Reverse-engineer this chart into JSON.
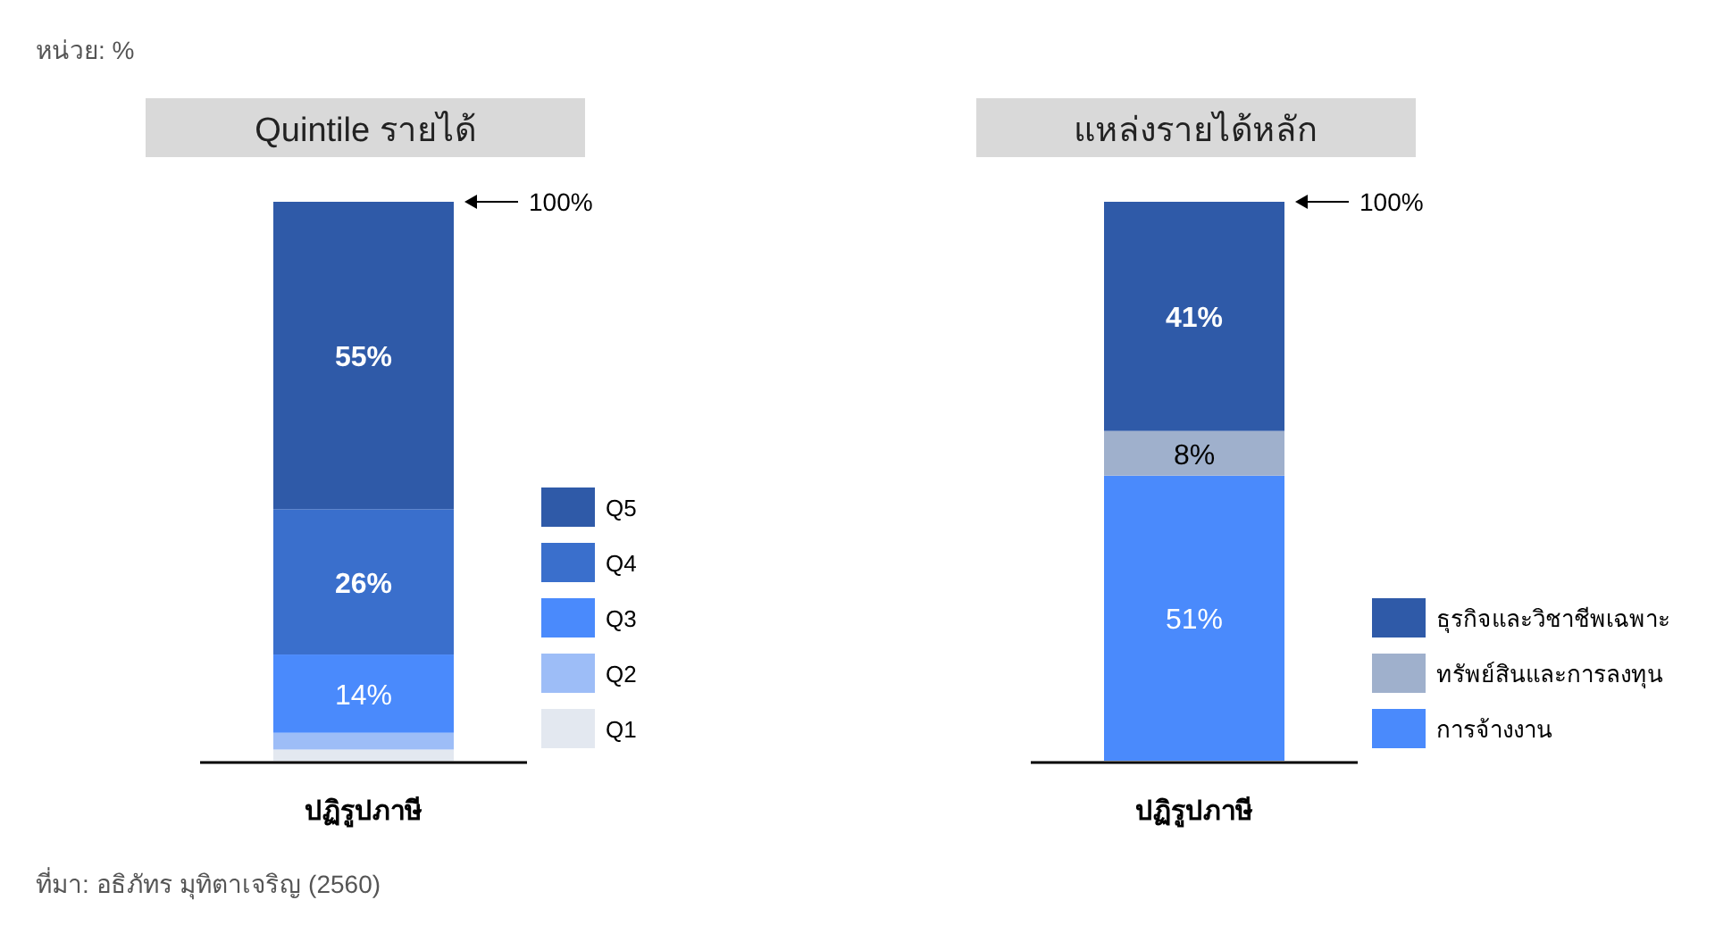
{
  "chart_data": [
    {
      "type": "bar",
      "stacked": true,
      "title": "Quintile รายได้",
      "categories": [
        "ปฏิรูปภาษี"
      ],
      "legend": "right",
      "series": [
        {
          "name": "Q1",
          "color": "#e3e8f0",
          "values": [
            2
          ]
        },
        {
          "name": "Q2",
          "color": "#9dbdf7",
          "values": [
            3
          ]
        },
        {
          "name": "Q3",
          "color": "#4a8afc",
          "values": [
            14
          ],
          "value_labels": [
            "14%"
          ]
        },
        {
          "name": "Q4",
          "color": "#3a6fcc",
          "values": [
            26
          ],
          "value_labels": [
            "26%"
          ]
        },
        {
          "name": "Q5",
          "color": "#2f5aa8",
          "values": [
            55
          ],
          "value_labels": [
            "55%"
          ]
        }
      ],
      "annotations": [
        "100%",
        "หน่วย: %",
        "ที่มา: อธิภัทร มุทิตาเจริญ (2560)"
      ]
    },
    {
      "type": "bar",
      "stacked": true,
      "title": "แหล่งรายได้หลัก",
      "categories": [
        "ปฏิรูปภาษี"
      ],
      "legend": "right",
      "series": [
        {
          "name": "การจ้างงาน",
          "color": "#4a8afc",
          "values": [
            51
          ],
          "value_labels": [
            "51%"
          ]
        },
        {
          "name": "ทรัพย์สินและการลงทุน",
          "color": "#9fb0cc",
          "values": [
            8
          ],
          "value_labels": [
            "8%"
          ]
        },
        {
          "name": "ธุรกิจและวิชาชีพเฉพาะ",
          "color": "#2f5aa8",
          "values": [
            41
          ],
          "value_labels": [
            "41%"
          ]
        }
      ],
      "annotations": [
        "100%"
      ]
    }
  ]
}
